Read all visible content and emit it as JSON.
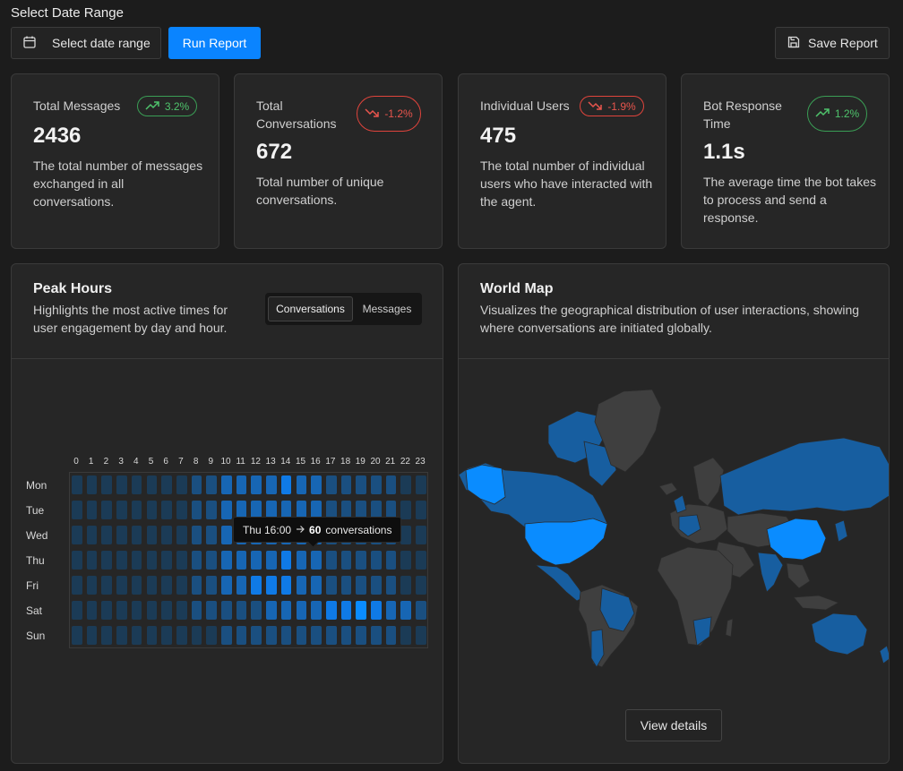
{
  "header": {
    "range_label": "Select Date Range",
    "date_button": "Select date range",
    "run_button": "Run Report",
    "save_button": "Save Report"
  },
  "stats": [
    {
      "title": "Total Messages",
      "value": "2436",
      "change": "3.2%",
      "trend": "up",
      "description": "The total number of messages exchanged in all conversations."
    },
    {
      "title": "Total Conversations",
      "value": "672",
      "change": "-1.2%",
      "trend": "down",
      "description": "Total number of unique conversations."
    },
    {
      "title": "Individual Users",
      "value": "475",
      "change": "-1.9%",
      "trend": "down",
      "description": "The total number of individual users who have interacted with the agent."
    },
    {
      "title": "Bot Response Time",
      "value": "1.1s",
      "change": "1.2%",
      "trend": "up",
      "description": "The average time the bot takes to process and send a response."
    }
  ],
  "peak_hours": {
    "title": "Peak Hours",
    "description": "Highlights the most active times for user engagement by day and hour.",
    "toggle": {
      "active": "Conversations",
      "other": "Messages"
    },
    "hours": [
      "0",
      "1",
      "2",
      "3",
      "4",
      "5",
      "6",
      "7",
      "8",
      "9",
      "10",
      "11",
      "12",
      "13",
      "14",
      "15",
      "16",
      "17",
      "18",
      "19",
      "20",
      "21",
      "22",
      "23"
    ],
    "days": [
      "Mon",
      "Tue",
      "Wed",
      "Thu",
      "Fri",
      "Sat",
      "Sun"
    ],
    "intensity": [
      [
        0,
        0,
        0,
        0,
        0,
        0,
        0,
        0,
        1,
        1,
        2,
        2,
        2,
        2,
        3,
        2,
        2,
        1,
        1,
        1,
        1,
        1,
        0,
        0
      ],
      [
        0,
        0,
        0,
        0,
        0,
        0,
        0,
        0,
        1,
        1,
        2,
        2,
        2,
        2,
        2,
        2,
        2,
        1,
        1,
        1,
        1,
        1,
        0,
        0
      ],
      [
        0,
        0,
        0,
        0,
        0,
        0,
        0,
        0,
        1,
        1,
        2,
        2,
        2,
        2,
        2,
        2,
        2,
        1,
        1,
        1,
        1,
        1,
        0,
        0
      ],
      [
        0,
        0,
        0,
        0,
        0,
        0,
        0,
        0,
        1,
        1,
        2,
        2,
        2,
        2,
        3,
        2,
        2,
        1,
        1,
        1,
        1,
        1,
        0,
        0
      ],
      [
        0,
        0,
        0,
        0,
        0,
        0,
        0,
        0,
        1,
        1,
        2,
        2,
        3,
        3,
        3,
        2,
        2,
        1,
        1,
        1,
        1,
        1,
        0,
        0
      ],
      [
        0,
        0,
        0,
        0,
        0,
        0,
        0,
        0,
        1,
        1,
        1,
        1,
        1,
        2,
        2,
        2,
        2,
        3,
        3,
        4,
        3,
        2,
        2,
        1
      ],
      [
        0,
        0,
        0,
        0,
        0,
        0,
        0,
        0,
        0,
        0,
        1,
        1,
        1,
        1,
        1,
        1,
        1,
        1,
        1,
        1,
        1,
        1,
        0,
        0
      ]
    ],
    "tooltip": {
      "label": "Thu 16:00",
      "value": "60",
      "unit": "conversations"
    },
    "colors": [
      "#1b3b56",
      "#1a4f80",
      "#1766b4",
      "#0f7ae6",
      "#0a8cff"
    ]
  },
  "world_map": {
    "title": "World Map",
    "description": "Visualizes the geographical distribution of user interactions, showing where conversations are initiated globally.",
    "button": "View details",
    "colors": {
      "none": "#3f3f3f",
      "low": "#175ea0",
      "high": "#0a8cff",
      "border": "#2a2a2a"
    }
  }
}
